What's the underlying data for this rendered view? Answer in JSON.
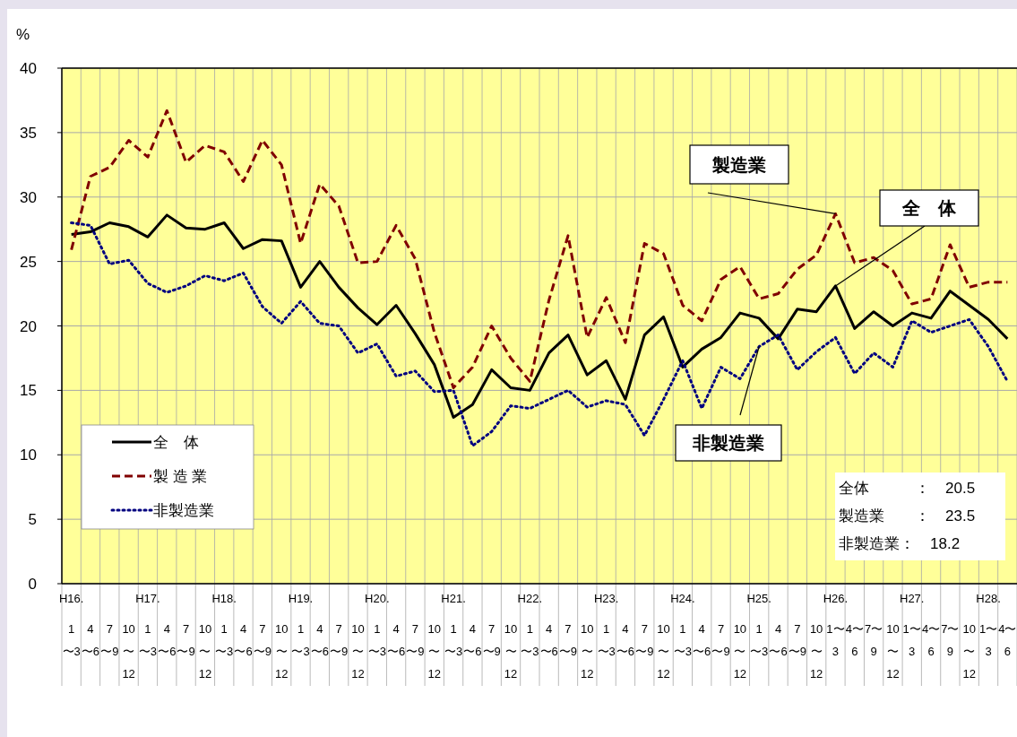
{
  "chart_data": {
    "type": "line",
    "ylabel": "%",
    "categories": [
      "H16.\n1\n〜3",
      "\n4\n〜6",
      "\n7\n〜9",
      "\n10\n〜\n12",
      "H17.\n1\n〜3",
      "\n4\n〜6",
      "\n7\n〜9",
      "\n10\n〜\n12",
      "H18.\n1\n〜3",
      "\n4\n〜6",
      "\n7\n〜9",
      "\n10\n〜\n12",
      "H19.\n1\n〜3",
      "\n4\n〜6",
      "\n7\n〜9",
      "\n10\n〜\n12",
      "H20.\n1\n〜3",
      "\n4\n〜6",
      "\n7\n〜9",
      "\n10\n〜\n12",
      "H21.\n1\n〜3",
      "\n4\n〜6",
      "\n7\n〜9",
      "\n10\n〜\n12",
      "H22.\n1\n〜3",
      "\n4\n〜6",
      "\n7\n〜9",
      "\n10\n〜\n12",
      "H23.\n1\n〜3",
      "\n4\n〜6",
      "\n7\n〜9",
      "\n10\n〜\n12",
      "H24.\n1\n〜3",
      "\n4\n〜6",
      "\n7\n〜9",
      "\n10\n〜\n12",
      "H25.\n1\n〜3",
      "\n4\n〜6",
      "\n7\n〜9",
      "\n10\n〜\n12",
      "H26.\n1〜\n3",
      "\n4〜\n6",
      "\n7〜\n9",
      "\n10\n〜\n12",
      "H27.\n1〜\n3",
      "\n4〜\n6",
      "\n7〜\n9",
      "\n10\n〜\n12",
      "H28.\n1〜\n3",
      "\n4〜\n6"
    ],
    "series": [
      {
        "name": "全　体",
        "color": "#000000",
        "line_style": "solid",
        "values": [
          27.1,
          27.3,
          28.0,
          27.7,
          26.9,
          28.6,
          27.6,
          27.5,
          28.0,
          26.0,
          26.7,
          26.6,
          23.0,
          25.0,
          23.0,
          21.4,
          20.1,
          21.6,
          19.4,
          17.0,
          12.9,
          13.9,
          16.6,
          15.2,
          15.0,
          17.9,
          19.3,
          16.2,
          17.3,
          14.3,
          19.3,
          20.7,
          16.8,
          18.2,
          19.1,
          21.0,
          20.6,
          19.0,
          21.3,
          21.1,
          23.1,
          19.8,
          21.1,
          20.0,
          21.0,
          20.6,
          22.7,
          21.6,
          20.5,
          19.0
        ]
      },
      {
        "name": "製 造 業",
        "color": "#800000",
        "line_style": "dashed",
        "values": [
          25.9,
          31.6,
          32.3,
          34.4,
          33.1,
          36.7,
          32.7,
          34.0,
          33.5,
          31.2,
          34.4,
          32.5,
          26.4,
          31.0,
          29.3,
          24.9,
          25.0,
          27.8,
          25.2,
          19.5,
          15.2,
          16.8,
          20.0,
          17.5,
          15.7,
          22.0,
          27.0,
          19.1,
          22.2,
          18.7,
          26.4,
          25.6,
          21.6,
          20.4,
          23.6,
          24.6,
          22.1,
          22.5,
          24.4,
          25.5,
          28.7,
          24.9,
          25.3,
          24.3,
          21.7,
          22.1,
          26.3,
          23.0,
          23.4,
          23.4
        ]
      },
      {
        "name": "非製造業",
        "color": "#000080",
        "line_style": "dotted",
        "values": [
          28.0,
          27.8,
          24.8,
          25.1,
          23.3,
          22.6,
          23.1,
          23.9,
          23.5,
          24.1,
          21.5,
          20.2,
          21.9,
          20.2,
          20.0,
          17.9,
          18.6,
          16.1,
          16.5,
          14.9,
          15.0,
          10.7,
          11.8,
          13.8,
          13.6,
          14.3,
          15.0,
          13.7,
          14.2,
          13.9,
          11.5,
          14.3,
          17.3,
          13.6,
          16.8,
          15.9,
          18.4,
          19.3,
          16.6,
          18.0,
          19.1,
          16.3,
          17.9,
          16.8,
          20.4,
          19.5,
          20.0,
          20.5,
          18.4,
          15.7
        ]
      }
    ],
    "ylim": [
      0,
      40
    ],
    "yticks": [
      0,
      5,
      10,
      15,
      20,
      25,
      30,
      35,
      40
    ],
    "grid": true,
    "legend": "bottom left",
    "annotations": [
      {
        "text": "製造業",
        "x": "H26.\n1〜\n3",
        "y": 28.7
      },
      {
        "text": "全　体",
        "x": "H26.\n1〜\n3",
        "y": 23.1
      },
      {
        "text": "非製造業",
        "x": "H25.\n1\n〜3",
        "y": 18.4
      },
      "全体　　　：　20.5",
      "製造業　　：　23.5",
      "非製造業：　18.2"
    ]
  }
}
